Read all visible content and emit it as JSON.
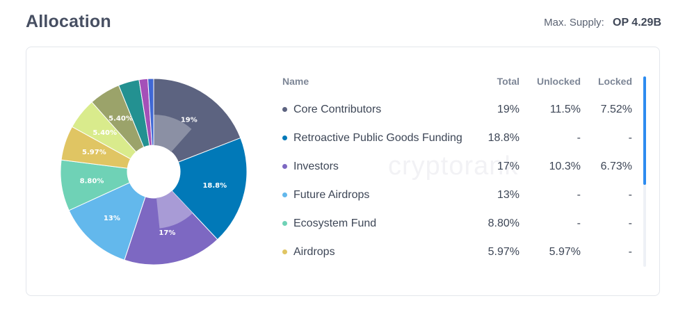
{
  "header": {
    "title": "Allocation",
    "max_supply_label": "Max. Supply:",
    "max_supply_value": "OP 4.29B"
  },
  "watermark": "cryptorank",
  "table": {
    "columns": {
      "name": "Name",
      "total": "Total",
      "unlocked": "Unlocked",
      "locked": "Locked"
    },
    "rows": [
      {
        "name": "Core Contributors",
        "total": "19%",
        "unlocked": "11.5%",
        "locked": "7.52%",
        "color": "#5c6380"
      },
      {
        "name": "Retroactive Public Goods Funding",
        "total": "18.8%",
        "unlocked": "-",
        "locked": "-",
        "color": "#0179b8"
      },
      {
        "name": "Investors",
        "total": "17%",
        "unlocked": "10.3%",
        "locked": "6.73%",
        "color": "#7d68c2"
      },
      {
        "name": "Future Airdrops",
        "total": "13%",
        "unlocked": "-",
        "locked": "-",
        "color": "#63b8ec"
      },
      {
        "name": "Ecosystem Fund",
        "total": "8.80%",
        "unlocked": "-",
        "locked": "-",
        "color": "#6fd2b6"
      },
      {
        "name": "Airdrops",
        "total": "5.97%",
        "unlocked": "5.97%",
        "locked": "-",
        "color": "#e0c563"
      }
    ]
  },
  "chart_data": {
    "type": "pie",
    "donut": true,
    "legend": "none",
    "slices": [
      {
        "label": "19%",
        "value": 19,
        "unlocked": 11.5,
        "color": "#5c6380",
        "inner_color": "#8b90a4"
      },
      {
        "label": "18.8%",
        "value": 18.8,
        "color": "#0179b8"
      },
      {
        "label": "17%",
        "value": 17,
        "unlocked": 10.3,
        "color": "#7d68c2",
        "inner_color": "#a89bd6"
      },
      {
        "label": "13%",
        "value": 13,
        "color": "#63b8ec"
      },
      {
        "label": "8.80%",
        "value": 8.8,
        "color": "#6fd2b6"
      },
      {
        "label": "5.97%",
        "value": 5.97,
        "color": "#e0c563"
      },
      {
        "label": "5.40%",
        "value": 5.4,
        "color": "#d9eb8c"
      },
      {
        "label": "5.40%",
        "value": 5.4,
        "color": "#9ba36a"
      },
      {
        "label": "",
        "value": 3.6,
        "color": "#239191"
      },
      {
        "label": "",
        "value": 1.5,
        "color": "#a450b8"
      },
      {
        "label": "",
        "value": 1.0,
        "color": "#4068d4"
      }
    ]
  }
}
